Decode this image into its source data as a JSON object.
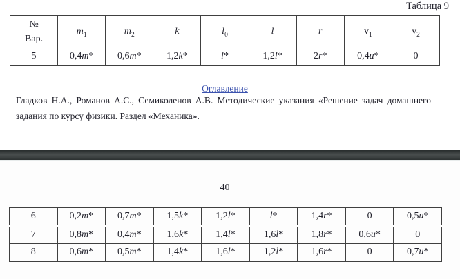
{
  "colors": {
    "link": "#3b52ae",
    "separator": "#3f4444",
    "text": "#23232d",
    "table_border": "#404040",
    "page_bg": "#ffffff"
  },
  "page_top": {
    "caption": "Таблица 9",
    "table": {
      "header": [
        [
          "№\nВар.",
          "m_1",
          "m_2",
          "k",
          "l_0",
          "l",
          "r",
          "v_1",
          "v_2"
        ]
      ],
      "rows": [
        [
          "5",
          "0,4m*",
          "0,6m*",
          "1,2k*",
          "l*",
          "1,2l*",
          "2r*",
          "0,4u*",
          "0"
        ]
      ]
    },
    "toc_link": "Оглавление",
    "citation": "Гладков Н.А., Романов А.С., Семиколенов А.В. Методические указания «Решение задач домашнего задания по курсу физики. Раздел «Механика»."
  },
  "page_bottom": {
    "page_number": "40",
    "table_continuation": {
      "rows": [
        [
          "6",
          "0,2m*",
          "0,7m*",
          "1,5k*",
          "1,2l*",
          "l*",
          "1,4r*",
          "0",
          "0,5u*"
        ],
        [
          "7",
          "0,8m*",
          "0,4m*",
          "1,6k*",
          "1,4l*",
          "1,6l*",
          "1,8r*",
          "0,6u*",
          "0"
        ],
        [
          "8",
          "0,6m*",
          "0,5m*",
          "1,4k*",
          "1,6l*",
          "1,2l*",
          "1,6r*",
          "0",
          "0,7u*"
        ]
      ]
    }
  }
}
